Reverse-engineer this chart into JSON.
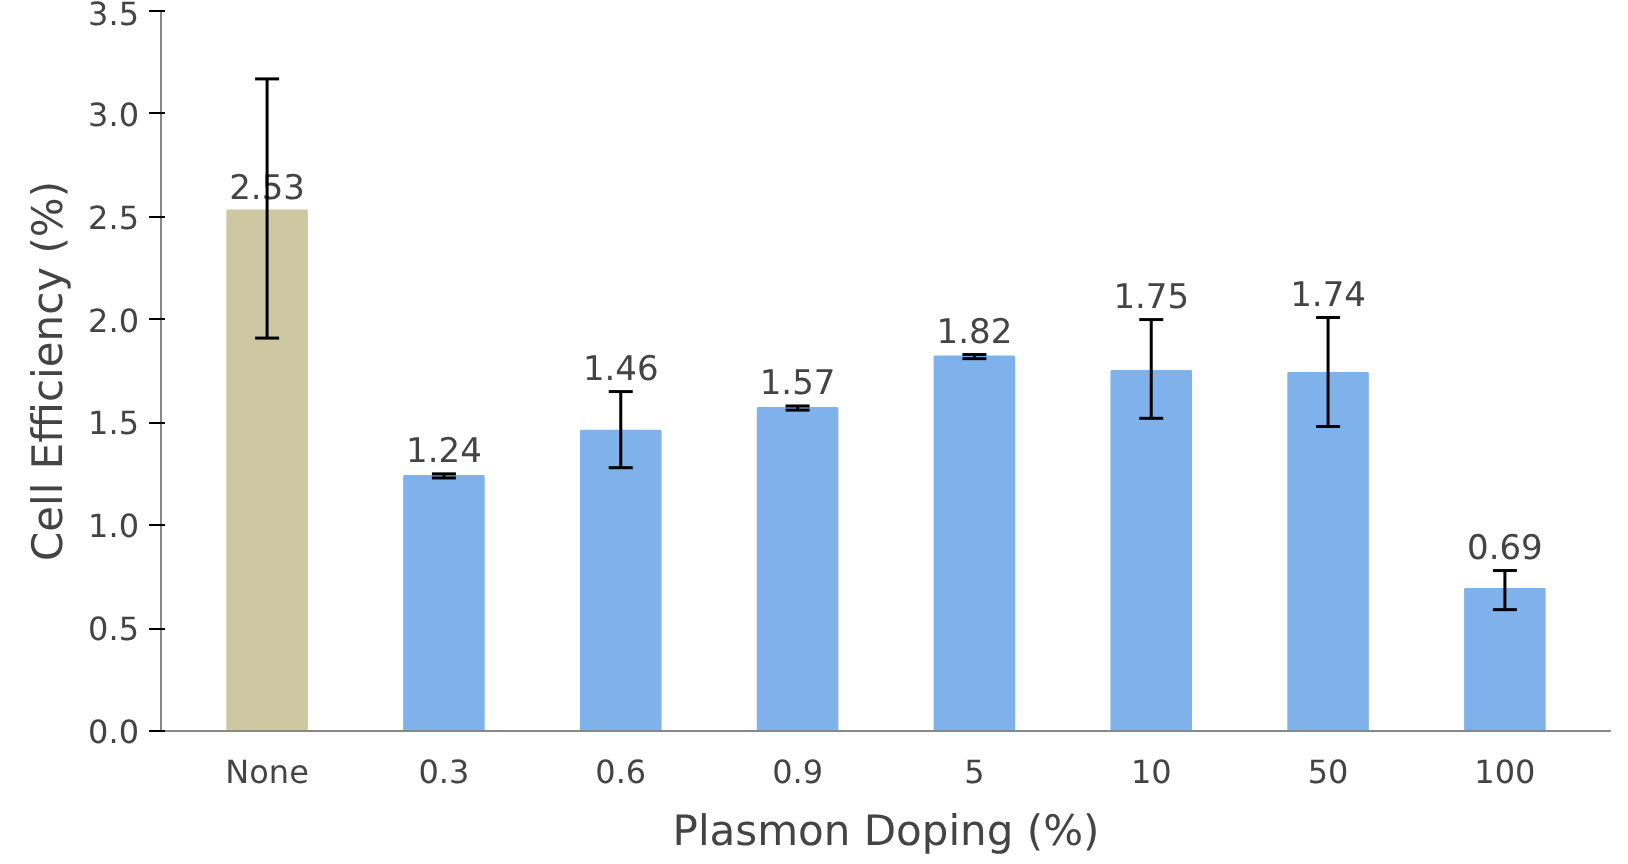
{
  "chart_data": {
    "type": "bar",
    "xlabel": "Plasmon Doping (%)",
    "ylabel": "Cell Efficiency (%)",
    "categories": [
      "None",
      "0.3",
      "0.6",
      "0.9",
      "5",
      "10",
      "50",
      "100"
    ],
    "values": [
      2.53,
      1.24,
      1.46,
      1.57,
      1.82,
      1.75,
      1.74,
      0.69
    ],
    "colors": [
      "#cdc7a2",
      "#7fb2ea",
      "#7fb2ea",
      "#7fb2ea",
      "#7fb2ea",
      "#7fb2ea",
      "#7fb2ea",
      "#7fb2ea"
    ],
    "errors": [
      [
        1.91,
        3.17
      ],
      0.01,
      [
        1.28,
        1.65
      ],
      0.01,
      0.01,
      [
        1.52,
        2.0
      ],
      [
        1.48,
        2.01
      ],
      [
        0.59,
        0.78
      ]
    ],
    "data_labels": true,
    "ylim": [
      0,
      3.5
    ],
    "yticks": [
      {
        "value": 0,
        "label": "0.0"
      },
      {
        "value": 0.5,
        "label": "0.5"
      },
      {
        "value": 1,
        "label": "1.0"
      },
      {
        "value": 1.5,
        "label": "1.5"
      },
      {
        "value": 2,
        "label": "2.0"
      },
      {
        "value": 2.5,
        "label": "2.5"
      },
      {
        "value": 3,
        "label": "3.0"
      },
      {
        "value": 3.5,
        "label": "3.5"
      }
    ],
    "grid": false
  }
}
